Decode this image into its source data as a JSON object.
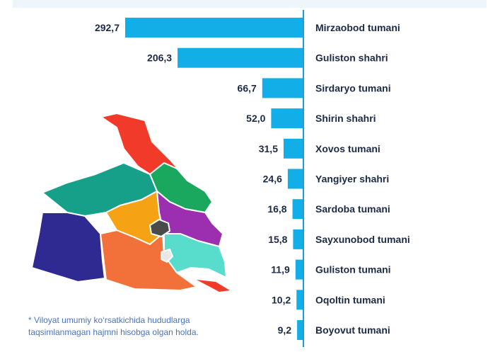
{
  "chart_data": {
    "type": "bar",
    "orientation": "horizontal",
    "categories": [
      "Mirzaobod tumani",
      "Guliston shahri",
      "Sirdaryo tumani",
      "Shirin shahri",
      "Xovos tumani",
      "Yangiyer shahri",
      "Sardoba tumani",
      "Sayxunobod tumani",
      "Guliston tumani",
      "Oqoltin tumani",
      "Boyovut tumani"
    ],
    "values": [
      292.7,
      206.3,
      66.7,
      52.0,
      31.5,
      24.6,
      16.8,
      15.8,
      11.9,
      10.2,
      9.2
    ],
    "value_labels": [
      "292,7",
      "206,3",
      "66,7",
      "52,0",
      "31,5",
      "24,6",
      "16,8",
      "15,8",
      "11,9",
      "10,2",
      "9,2"
    ],
    "title": "",
    "xlabel": "",
    "ylabel": "",
    "xlim": [
      0,
      292.7
    ],
    "grid": false,
    "legend": "none",
    "bar_color": "#12aee8",
    "axis_color": "#1aa0d8"
  },
  "footnote": {
    "line1": "* Viloyat umumiy ko‘rsatkichida hududlarga",
    "line2": "taqsimlanmagan hajmni hisobga olgan holda."
  },
  "map": {
    "region_colors": [
      "#f23a2b",
      "#19a85d",
      "#16a08a",
      "#f5a214",
      "#9b2fb0",
      "#2e2a91",
      "#f2713a",
      "#58dccc",
      "#4a4a4a",
      "#e8e8e8"
    ]
  }
}
